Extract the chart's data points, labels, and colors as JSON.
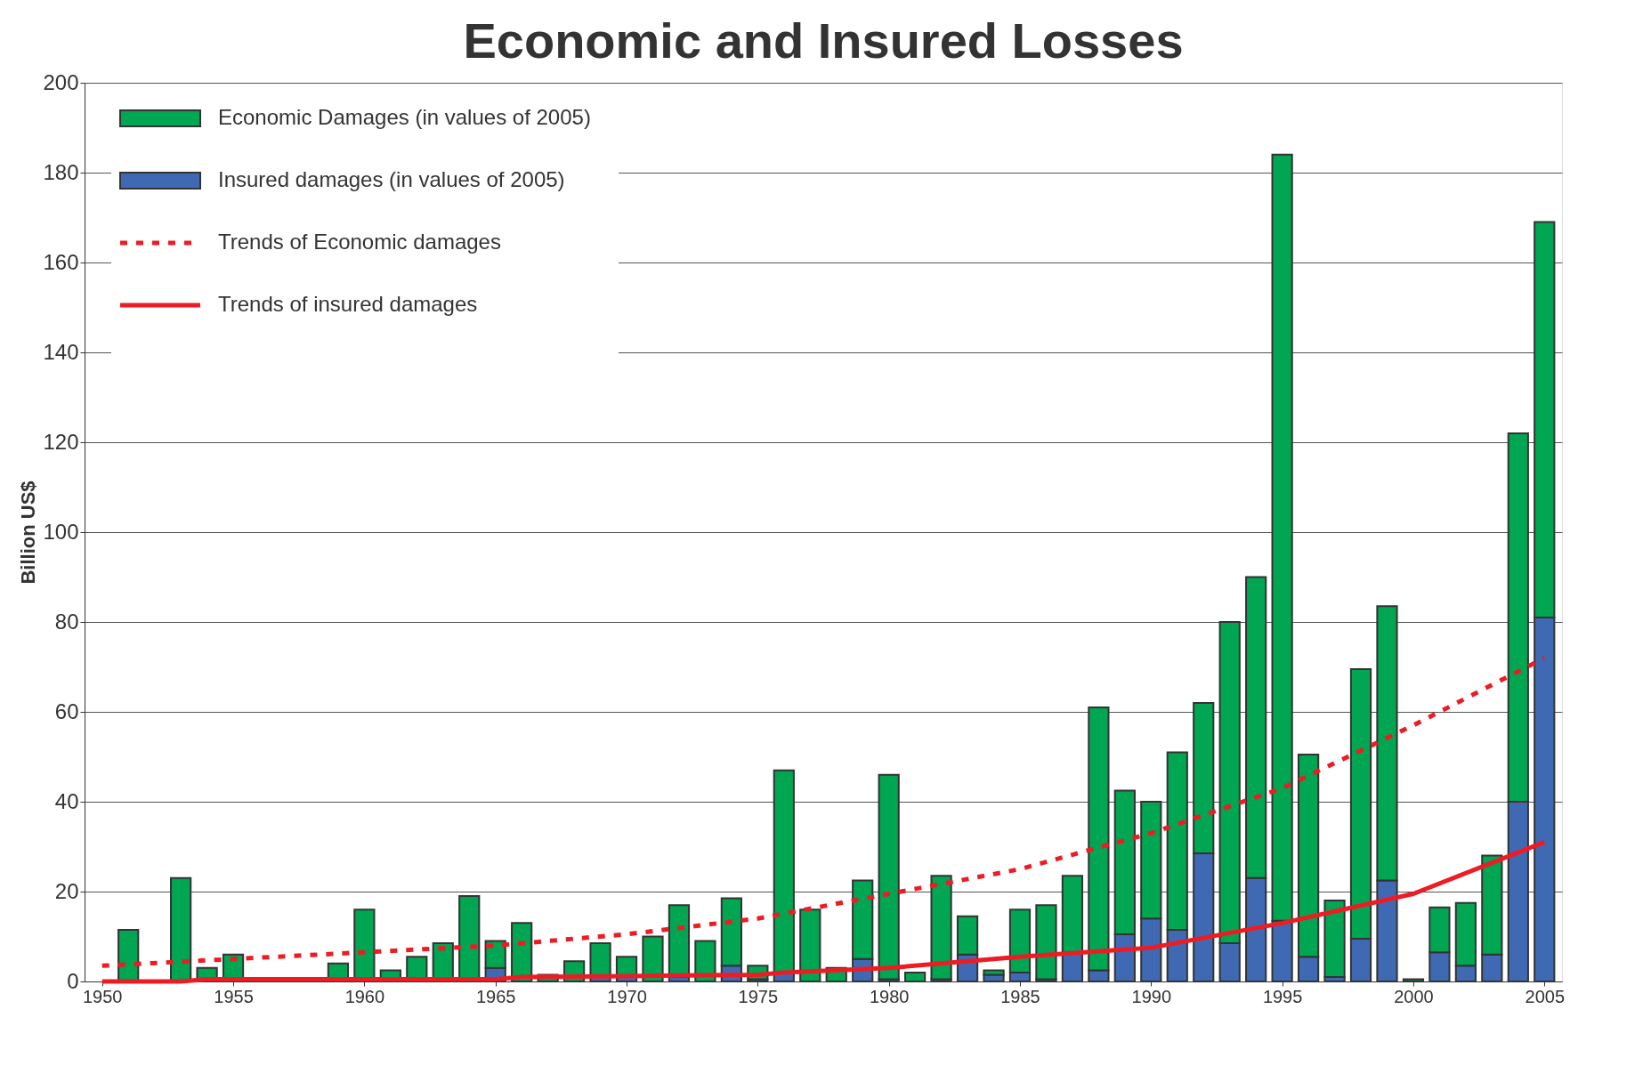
{
  "chart_data": {
    "type": "bar",
    "title": "Economic and Insured Losses",
    "ylabel": "Billion US$",
    "x": [
      1951,
      1952,
      1953,
      1954,
      1955,
      1956,
      1957,
      1958,
      1959,
      1960,
      1961,
      1962,
      1963,
      1964,
      1965,
      1966,
      1967,
      1968,
      1969,
      1970,
      1971,
      1972,
      1973,
      1974,
      1975,
      1976,
      1977,
      1978,
      1979,
      1980,
      1981,
      1982,
      1983,
      1984,
      1985,
      1986,
      1987,
      1988,
      1989,
      1990,
      1991,
      1992,
      1993,
      1994,
      1995,
      1996,
      1997,
      1998,
      1999,
      2000,
      2001,
      2002,
      2003,
      2004,
      2005
    ],
    "stacked": true,
    "series": [
      {
        "name": "Insured damages (in values of  2005)",
        "color": "#3f6ab3",
        "values": [
          null,
          null,
          null,
          null,
          null,
          null,
          null,
          null,
          null,
          null,
          null,
          null,
          null,
          null,
          3,
          null,
          null,
          null,
          1,
          1,
          null,
          1,
          null,
          3.5,
          0.5,
          2,
          null,
          null,
          5,
          0.5,
          null,
          0.5,
          6,
          1.5,
          2,
          0.5,
          6.5,
          2.5,
          10.5,
          14,
          11.5,
          28.5,
          8.5,
          23,
          13.5,
          5.5,
          1,
          9.5,
          22.5,
          null,
          6.5,
          3.5,
          6,
          40,
          81
        ]
      },
      {
        "name": "Economic Damages (in values of 2005)",
        "color": "#00a651",
        "values": [
          11.5,
          null,
          23,
          3,
          6,
          null,
          null,
          null,
          4,
          16,
          2.5,
          5.5,
          8.5,
          19,
          6,
          13,
          1.5,
          4.5,
          7.5,
          4.5,
          10,
          16,
          9,
          15,
          3,
          45,
          16,
          3,
          17.5,
          45.5,
          2,
          23,
          8.5,
          1,
          14,
          16.5,
          17,
          58.5,
          32,
          26,
          39.5,
          33.5,
          71.5,
          67,
          170.5,
          45,
          17,
          60,
          61,
          0.5,
          10,
          14,
          22,
          82,
          88
        ]
      },
      {
        "name": "Trends of Economic damages",
        "type": "line",
        "color": "#ed1c24",
        "line_style": "dotted",
        "x": [
          1950,
          1955,
          1960,
          1965,
          1970,
          1975,
          1980,
          1985,
          1990,
          1995,
          2000,
          2005
        ],
        "values": [
          3.5,
          5,
          6.5,
          8,
          10.5,
          14,
          19.5,
          25,
          33,
          43,
          57,
          72
        ]
      },
      {
        "name": "Trends of insured damages",
        "type": "line",
        "color": "#ed1c24",
        "line_style": "solid",
        "x": [
          1950,
          1953,
          1954,
          1965,
          1966,
          1970,
          1975,
          1976,
          1980,
          1985,
          1990,
          1995,
          2000,
          2005
        ],
        "values": [
          0,
          0,
          0.5,
          0.5,
          1,
          1.2,
          1.5,
          2,
          3,
          5.5,
          7.5,
          13,
          19.5,
          31
        ]
      }
    ],
    "xlim": [
      1949.5,
      2005.5
    ],
    "xticks": [
      1950,
      1955,
      1960,
      1965,
      1970,
      1975,
      1980,
      1985,
      1990,
      1995,
      2000,
      2005
    ],
    "ylim": [
      0,
      200
    ],
    "yticks": [
      0,
      20,
      40,
      60,
      80,
      100,
      120,
      140,
      160,
      180,
      200
    ],
    "grid": "y",
    "legend": "top left"
  }
}
